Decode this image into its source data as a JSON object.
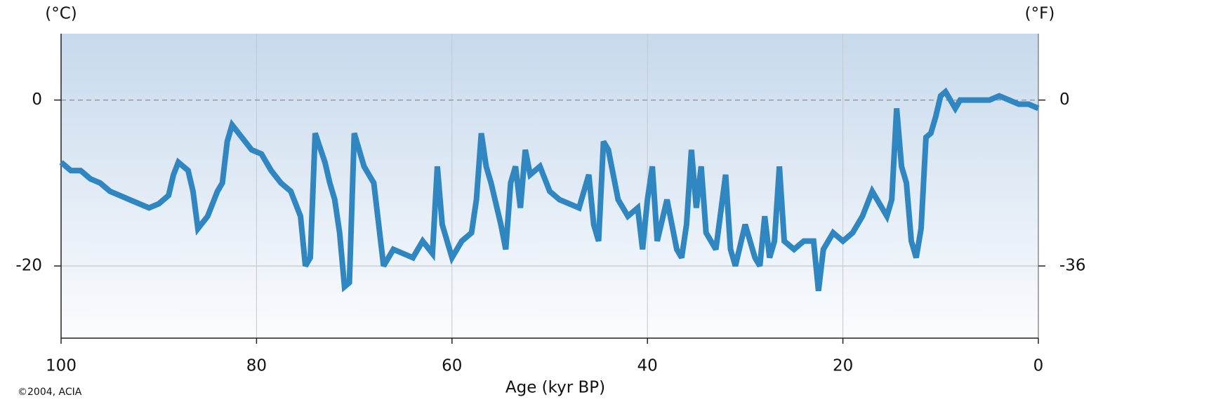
{
  "chart_data": {
    "type": "line",
    "ylabel": "(°C)",
    "y2label": "(°F)",
    "xlabel": "Age (kyr BP)",
    "annotation": "©2004, ACIA",
    "x": [
      100,
      99,
      98,
      97,
      96,
      95,
      94,
      93,
      92,
      91,
      90,
      89,
      88.5,
      88,
      87,
      86.5,
      86,
      85,
      84,
      83.5,
      83,
      82.5,
      81.5,
      80.5,
      79.5,
      78.5,
      77.5,
      76.5,
      75.5,
      75,
      74.5,
      74,
      73,
      72.5,
      72,
      71.5,
      71,
      70.5,
      70,
      69,
      68,
      67.5,
      67,
      66,
      65,
      64,
      63,
      62,
      61.5,
      61,
      60,
      59,
      58,
      57.5,
      57,
      56.5,
      56,
      55,
      54.5,
      54,
      53.5,
      53,
      52.5,
      52,
      51,
      50,
      49,
      48,
      47,
      46,
      45.5,
      45,
      44.5,
      44,
      43,
      42,
      41,
      40.5,
      40,
      39.5,
      39,
      38,
      37,
      36.5,
      36,
      35.5,
      35,
      34.5,
      34,
      33,
      32,
      31.5,
      31,
      30,
      29.5,
      29,
      28.5,
      28,
      27.5,
      27,
      26.5,
      26,
      25,
      24,
      23,
      22.5,
      22,
      21,
      20,
      19,
      18,
      17,
      16,
      15.5,
      15,
      14.5,
      14,
      13.5,
      13,
      12.5,
      12,
      11.5,
      11,
      10.5,
      10,
      9.5,
      9,
      8.5,
      8,
      7,
      6,
      5,
      4,
      3,
      2,
      1,
      0
    ],
    "series": [
      {
        "color": "#2f86c0",
        "values": [
          -7.5,
          -8.5,
          -8.5,
          -9.5,
          -10,
          -11,
          -11.5,
          -12,
          -12.5,
          -13,
          -12.5,
          -11.5,
          -9,
          -7.5,
          -8.5,
          -11,
          -15.5,
          -14,
          -11,
          -10,
          -5,
          -3,
          -4.5,
          -6,
          -6.5,
          -8.5,
          -10,
          -11,
          -14,
          -20,
          -19,
          -4,
          -7.5,
          -10,
          -12,
          -16,
          -22.5,
          -22,
          -4,
          -8,
          -10,
          -15,
          -20,
          -18,
          -18.5,
          -19,
          -17,
          -18.5,
          -8,
          -15,
          -19,
          -17,
          -16,
          -12,
          -4,
          -8,
          -10,
          -15,
          -18,
          -10,
          -8,
          -13,
          -6,
          -9,
          -8,
          -11,
          -12,
          -12.5,
          -13,
          -9,
          -15,
          -17,
          -5,
          -6,
          -12,
          -14,
          -13,
          -18,
          -12,
          -8,
          -17,
          -12,
          -18,
          -19,
          -15,
          -6,
          -13,
          -8,
          -16,
          -18,
          -9,
          -18,
          -20,
          -15,
          -17,
          -19,
          -20,
          -14,
          -19,
          -17,
          -8,
          -17,
          -18,
          -17,
          -17,
          -23,
          -18,
          -16,
          -17,
          -16,
          -14,
          -11,
          -13,
          -14,
          -12,
          -1,
          -8,
          -10,
          -17,
          -19,
          -15.5,
          -4.5,
          -4,
          -2,
          0.5,
          1,
          0,
          -1,
          0,
          0,
          0,
          0,
          0.5,
          0,
          -0.5,
          -0.5,
          -1
        ]
      }
    ],
    "xlim": [
      100,
      0
    ],
    "xticks": [
      100,
      80,
      60,
      40,
      20,
      0
    ],
    "ylim": [
      -28.7,
      8
    ],
    "yticks": [
      0,
      -20
    ],
    "y2lim": [
      -51.66,
      14.4
    ],
    "y2ticks": [
      0,
      -36
    ],
    "grid": true
  }
}
